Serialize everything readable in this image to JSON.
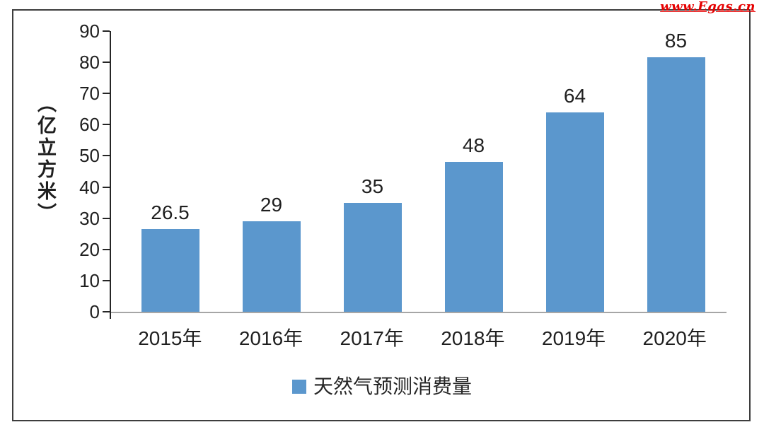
{
  "watermark": {
    "text": "www.Egas.cn"
  },
  "chart_data": {
    "type": "bar",
    "title": "",
    "categories": [
      "2015年",
      "2016年",
      "2017年",
      "2018年",
      "2019年",
      "2020年"
    ],
    "values": [
      26.5,
      29,
      35,
      48,
      64,
      85
    ],
    "value_labels": [
      "26.5",
      "29",
      "35",
      "48",
      "64",
      "85"
    ],
    "xlabel": "",
    "ylabel": "（亿立方米）",
    "ylim": [
      0,
      90
    ],
    "yticks": [
      0,
      10,
      20,
      30,
      40,
      50,
      60,
      70,
      80,
      90
    ],
    "grid": false,
    "legend": {
      "label": "天然气预测消费量",
      "position": "bottom"
    },
    "colors": {
      "bar": "#5b97cd",
      "axis_y": "#262626",
      "axis_x": "#a6a6a6",
      "text": "#1f1f1f",
      "watermark": "#e60000"
    }
  }
}
